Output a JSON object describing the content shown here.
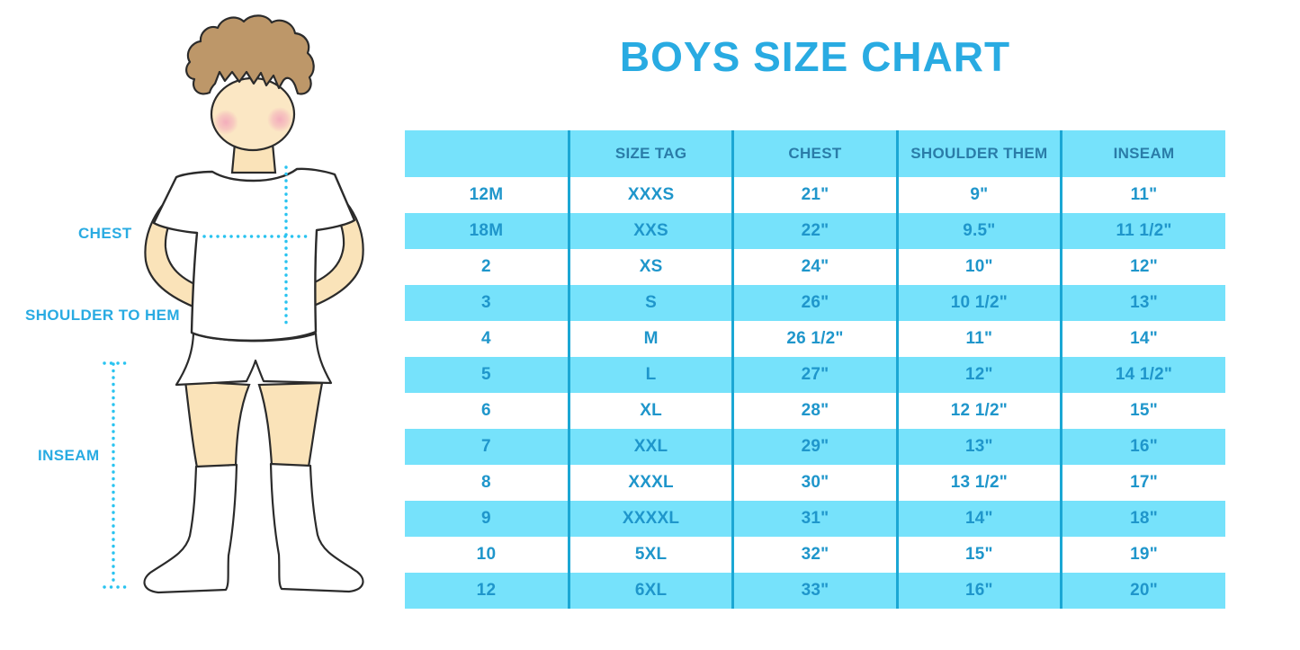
{
  "title": "BOYS SIZE CHART",
  "figure": {
    "description": "boy-in-white-tshirt-shorts-and-knee-socks-measurement-diagram",
    "labels": {
      "chest": "CHEST",
      "shoulder_to_hem": "SHOULDER TO HEM",
      "inseam": "INSEAM"
    }
  },
  "colors": {
    "title": "#29ABE2",
    "header_bg": "#76E2FB",
    "row_alt_bg": "#76E2FB",
    "divider": "#1BA7D4",
    "cell_text": "#1F96CB",
    "header_text": "#2A7CA8",
    "dotted": "#29C3F0",
    "label": "#29ABE2"
  },
  "chart_data": {
    "type": "table",
    "title": "BOYS SIZE CHART",
    "columns": [
      "",
      "SIZE TAG",
      "CHEST",
      "SHOULDER THEM",
      "INSEAM"
    ],
    "rows": [
      [
        "12M",
        "XXXS",
        "21\"",
        "9\"",
        "11\""
      ],
      [
        "18M",
        "XXS",
        "22\"",
        "9.5\"",
        "11 1/2\""
      ],
      [
        "2",
        "XS",
        "24\"",
        "10\"",
        "12\""
      ],
      [
        "3",
        "S",
        "26\"",
        "10 1/2\"",
        "13\""
      ],
      [
        "4",
        "M",
        "26 1/2\"",
        "11\"",
        "14\""
      ],
      [
        "5",
        "L",
        "27\"",
        "12\"",
        "14 1/2\""
      ],
      [
        "6",
        "XL",
        "28\"",
        "12 1/2\"",
        "15\""
      ],
      [
        "7",
        "XXL",
        "29\"",
        "13\"",
        "16\""
      ],
      [
        "8",
        "XXXL",
        "30\"",
        "13 1/2\"",
        "17\""
      ],
      [
        "9",
        "XXXXL",
        "31\"",
        "14\"",
        "18\""
      ],
      [
        "10",
        "5XL",
        "32\"",
        "15\"",
        "19\""
      ],
      [
        "12",
        "6XL",
        "33\"",
        "16\"",
        "20\""
      ]
    ],
    "layout": {
      "header_fill": "#76E2FB",
      "alternating_row_fill": [
        "#FFFFFF",
        "#76E2FB"
      ],
      "column_dividers": true,
      "row_dividers": false
    }
  }
}
